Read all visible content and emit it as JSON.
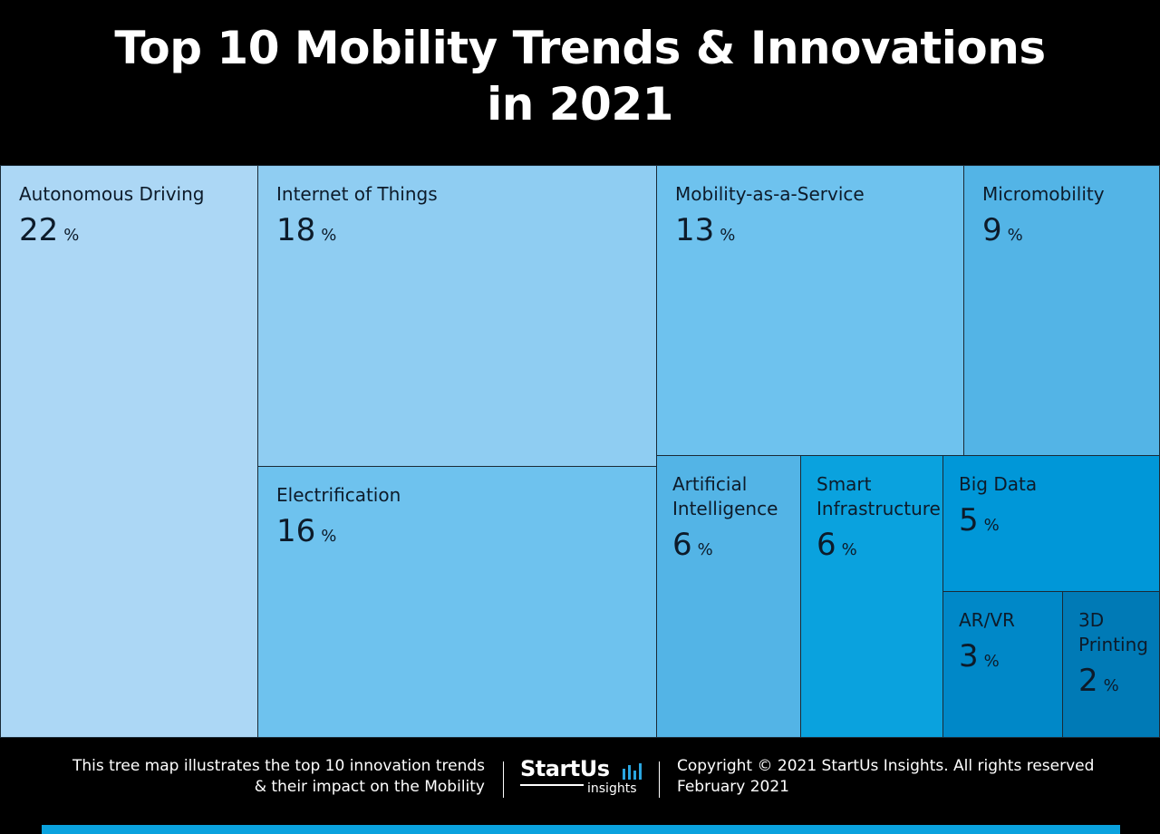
{
  "title": {
    "line1": "Top 10 Mobility Trends & Innovations",
    "line2": "in 2021"
  },
  "chart_data": {
    "type": "treemap",
    "unit": "%",
    "items": [
      {
        "label": "Autonomous Driving",
        "value": 22,
        "color": "#acd7f5"
      },
      {
        "label": "Internet of Things",
        "value": 18,
        "color": "#8fcdf2"
      },
      {
        "label": "Electrification",
        "value": 16,
        "color": "#6ec2ee"
      },
      {
        "label": "Mobility-as-a-Service",
        "value": 13,
        "color": "#6ec2ee"
      },
      {
        "label": "Micromobility",
        "value": 9,
        "color": "#53b4e6"
      },
      {
        "label": "Artificial Intelligence",
        "value": 6,
        "color": "#53b4e6"
      },
      {
        "label": "Smart Infrastructure",
        "value": 6,
        "color": "#0aa2de"
      },
      {
        "label": "Big Data",
        "value": 5,
        "color": "#0097d8"
      },
      {
        "label": "AR/VR",
        "value": 3,
        "color": "#0088c8"
      },
      {
        "label": "3D Printing",
        "value": 2,
        "color": "#007ab6"
      }
    ]
  },
  "footer": {
    "description_line1": "This tree map illustrates the top 10 innovation trends",
    "description_line2": "& their impact on the Mobility",
    "logo_main": "StartUs",
    "logo_sub": "insights",
    "copyright_line1": "Copyright © 2021 StartUs Insights. All rights reserved",
    "copyright_line2": "February 2021",
    "bar_color": "#0aa2de"
  }
}
